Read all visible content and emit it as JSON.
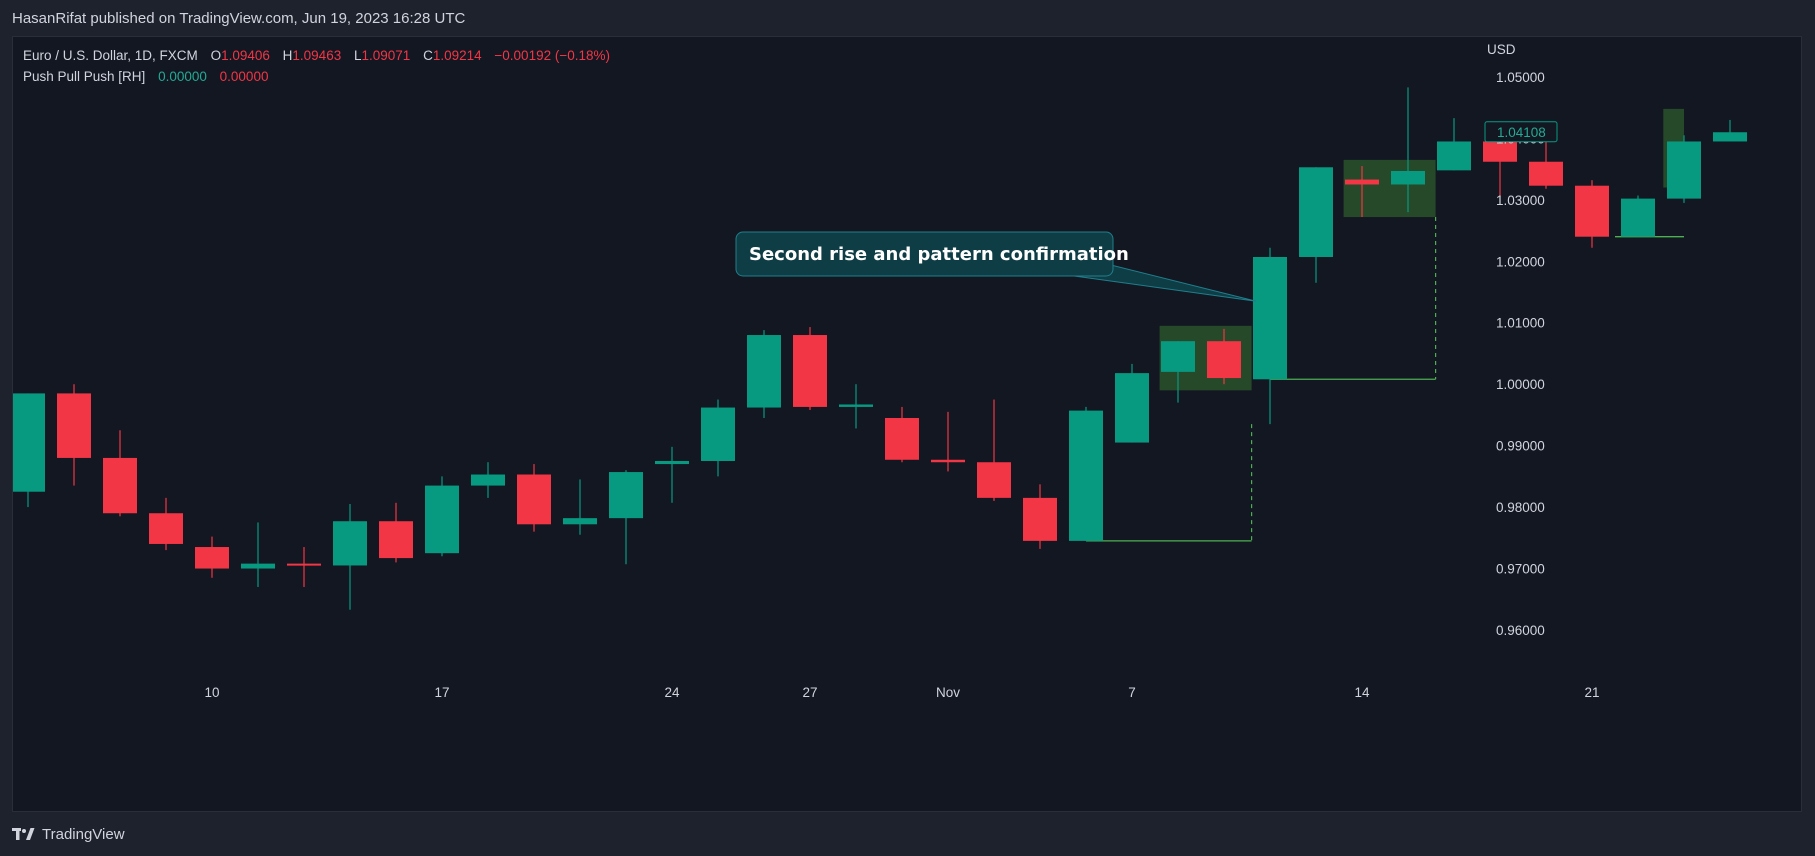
{
  "header": {
    "publisher_line": "HasanRifat published on TradingView.com, Jun 19, 2023 16:28 UTC"
  },
  "legend": {
    "symbol": "Euro / U.S. Dollar, 1D, FXCM",
    "open_label": "O",
    "open": "1.09406",
    "high_label": "H",
    "high": "1.09463",
    "low_label": "L",
    "low": "1.09071",
    "close_label": "C",
    "close": "1.09214",
    "change": "−0.00192 (−0.18%)",
    "indicator_name": "Push Pull Push [RH]",
    "indicator_value_1": "0.00000",
    "indicator_value_2": "0.00000"
  },
  "footer": {
    "brand": "TradingView"
  },
  "colors": {
    "background": "#131722",
    "up": "#089981",
    "down": "#f23645",
    "zone_fill": "#2e5b2c",
    "level_line": "#4caf50",
    "callout_fill": "#0f3d45",
    "callout_border": "#1f7f8c"
  },
  "chart_data": {
    "type": "candlestick",
    "currency_label": "USD",
    "y_ticks": [
      "1.05000",
      "1.04000",
      "1.03000",
      "1.02000",
      "1.01000",
      "1.00000",
      "0.99000",
      "0.98000",
      "0.97000",
      "0.96000"
    ],
    "y_tick_values": [
      1.05,
      1.04,
      1.03,
      1.02,
      1.01,
      1.0,
      0.99,
      0.98,
      0.97,
      0.96
    ],
    "x_ticks": [
      {
        "label": "10",
        "index": 4
      },
      {
        "label": "17",
        "index": 9
      },
      {
        "label": "24",
        "index": 14
      },
      {
        "label": "27",
        "index": 17
      },
      {
        "label": "Nov",
        "index": 20
      },
      {
        "label": "7",
        "index": 24
      },
      {
        "label": "14",
        "index": 29
      },
      {
        "label": "21",
        "index": 34
      }
    ],
    "ylim": [
      0.953,
      1.0565
    ],
    "last_price_label": "1.04108",
    "last_price": 1.04108,
    "candles": [
      {
        "o": 0.9825,
        "h": 0.9985,
        "l": 0.98,
        "c": 0.9985
      },
      {
        "o": 0.9985,
        "h": 1.0,
        "l": 0.9835,
        "c": 0.988
      },
      {
        "o": 0.988,
        "h": 0.9925,
        "l": 0.9785,
        "c": 0.979
      },
      {
        "o": 0.979,
        "h": 0.9815,
        "l": 0.973,
        "c": 0.974
      },
      {
        "o": 0.9735,
        "h": 0.9752,
        "l": 0.9685,
        "c": 0.97
      },
      {
        "o": 0.97,
        "h": 0.9775,
        "l": 0.967,
        "c": 0.9708
      },
      {
        "o": 0.9708,
        "h": 0.9735,
        "l": 0.967,
        "c": 0.9705
      },
      {
        "o": 0.9705,
        "h": 0.9805,
        "l": 0.9633,
        "c": 0.9777
      },
      {
        "o": 0.9777,
        "h": 0.9807,
        "l": 0.971,
        "c": 0.9717
      },
      {
        "o": 0.9725,
        "h": 0.985,
        "l": 0.972,
        "c": 0.9835
      },
      {
        "o": 0.9835,
        "h": 0.9873,
        "l": 0.9815,
        "c": 0.9853
      },
      {
        "o": 0.9853,
        "h": 0.987,
        "l": 0.976,
        "c": 0.9772
      },
      {
        "o": 0.9772,
        "h": 0.9845,
        "l": 0.9755,
        "c": 0.9782
      },
      {
        "o": 0.9782,
        "h": 0.986,
        "l": 0.9707,
        "c": 0.9857
      },
      {
        "o": 0.987,
        "h": 0.9898,
        "l": 0.9807,
        "c": 0.9875
      },
      {
        "o": 0.9875,
        "h": 0.9975,
        "l": 0.985,
        "c": 0.9962
      },
      {
        "o": 0.9962,
        "h": 1.0088,
        "l": 0.9945,
        "c": 1.008
      },
      {
        "o": 1.008,
        "h": 1.0093,
        "l": 0.9958,
        "c": 0.9963
      },
      {
        "o": 0.9963,
        "h": 1.0,
        "l": 0.9928,
        "c": 0.9967
      },
      {
        "o": 0.9945,
        "h": 0.9963,
        "l": 0.9873,
        "c": 0.9877
      },
      {
        "o": 0.9877,
        "h": 0.9955,
        "l": 0.9858,
        "c": 0.9873
      },
      {
        "o": 0.9873,
        "h": 0.9975,
        "l": 0.981,
        "c": 0.9815
      },
      {
        "o": 0.9815,
        "h": 0.9837,
        "l": 0.9732,
        "c": 0.9745
      },
      {
        "o": 0.9745,
        "h": 0.9963,
        "l": 0.9745,
        "c": 0.9957
      },
      {
        "o": 0.9905,
        "h": 1.0033,
        "l": 0.9905,
        "c": 1.0018
      },
      {
        "o": 1.002,
        "h": 1.007,
        "l": 0.997,
        "c": 1.007
      },
      {
        "o": 1.007,
        "h": 1.009,
        "l": 1.0,
        "c": 1.001
      },
      {
        "o": 1.0008,
        "h": 1.0222,
        "l": 0.9935,
        "c": 1.0207
      },
      {
        "o": 1.0207,
        "h": 1.0353,
        "l": 1.0165,
        "c": 1.0353
      },
      {
        "o": 1.0333,
        "h": 1.0355,
        "l": 1.0272,
        "c": 1.0325
      },
      {
        "o": 1.0325,
        "h": 1.0483,
        "l": 1.028,
        "c": 1.0347
      },
      {
        "o": 1.0348,
        "h": 1.0433,
        "l": 1.0348,
        "c": 1.0395
      },
      {
        "o": 1.0395,
        "h": 1.0408,
        "l": 1.0305,
        "c": 1.0362
      },
      {
        "o": 1.0362,
        "h": 1.0397,
        "l": 1.0318,
        "c": 1.0323
      },
      {
        "o": 1.0323,
        "h": 1.0332,
        "l": 1.0222,
        "c": 1.024
      },
      {
        "o": 1.024,
        "h": 1.0307,
        "l": 1.024,
        "c": 1.0302
      },
      {
        "o": 1.0302,
        "h": 1.0405,
        "l": 1.0295,
        "c": 1.0395
      },
      {
        "o": 1.0395,
        "h": 1.043,
        "l": 1.0395,
        "c": 1.041
      }
    ],
    "zones": [
      {
        "start": 24.6,
        "end": 26.6,
        "top": 1.0095,
        "bottom": 0.999
      },
      {
        "start": 28.6,
        "end": 30.6,
        "top": 1.0365,
        "bottom": 1.0272
      },
      {
        "start": 35.55,
        "end": 36.0,
        "top": 1.0448,
        "bottom": 1.032
      }
    ],
    "level_lines": [
      {
        "start": 23.0,
        "end": 26.6,
        "value": 0.9745,
        "vertical_dashed_at": 26.6,
        "dash_top": 0.9935
      },
      {
        "start": 27.0,
        "end": 30.6,
        "value": 1.0008,
        "vertical_dashed_at": 30.6,
        "dash_top": 1.0272
      },
      {
        "start": 34.5,
        "end": 36.0,
        "value": 1.024
      }
    ],
    "annotation": {
      "text": "Second rise and pattern confirmation",
      "anchor_index": 26.7,
      "anchor_value": 1.0135
    }
  }
}
